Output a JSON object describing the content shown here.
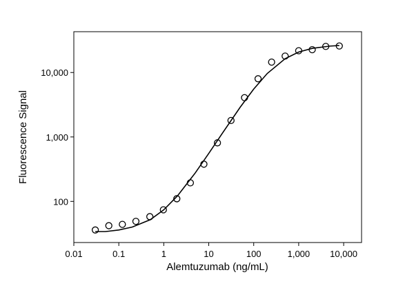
{
  "chart_data": {
    "type": "scatter",
    "x_label": "Alemtuzumab (ng/mL)",
    "y_label": "Fluorescence Signal",
    "xscale": "log",
    "yscale": "log",
    "xlim": [
      0.01,
      25000
    ],
    "ylim": [
      23,
      43000
    ],
    "xticks": [
      0.01,
      0.1,
      1,
      10,
      100,
      {
        "value": 1000,
        "label": "1,000"
      },
      {
        "value": 10000,
        "label": "10,000"
      }
    ],
    "yticks": [
      100,
      {
        "value": 1000,
        "label": "1,000"
      },
      {
        "value": 10000,
        "label": "10,000"
      }
    ],
    "grid": false,
    "series": [
      {
        "type": "scatter",
        "color": "#000000",
        "x": [
          0.03,
          0.06,
          0.12,
          0.24,
          0.49,
          0.98,
          1.95,
          3.9,
          7.8,
          15.6,
          31.25,
          62.5,
          125,
          250,
          500,
          1000,
          2000,
          4000,
          8000
        ],
        "values": [
          36,
          42,
          44,
          49,
          58,
          74,
          110,
          194,
          378,
          810,
          1800,
          4070,
          8000,
          14500,
          18000,
          21800,
          22600,
          25400,
          25800
        ]
      },
      {
        "type": "line",
        "color": "#000000",
        "x": [
          0.03,
          0.05,
          0.1,
          0.2,
          0.5,
          1,
          2,
          5,
          10,
          20,
          50,
          100,
          200,
          500,
          1000,
          2000,
          5000,
          8000
        ],
        "values": [
          34,
          34,
          36,
          40,
          52,
          74,
          121,
          276,
          555,
          1138,
          2893,
          5537,
          9664,
          16387,
          20777,
          23719,
          25718,
          26225
        ]
      }
    ]
  }
}
